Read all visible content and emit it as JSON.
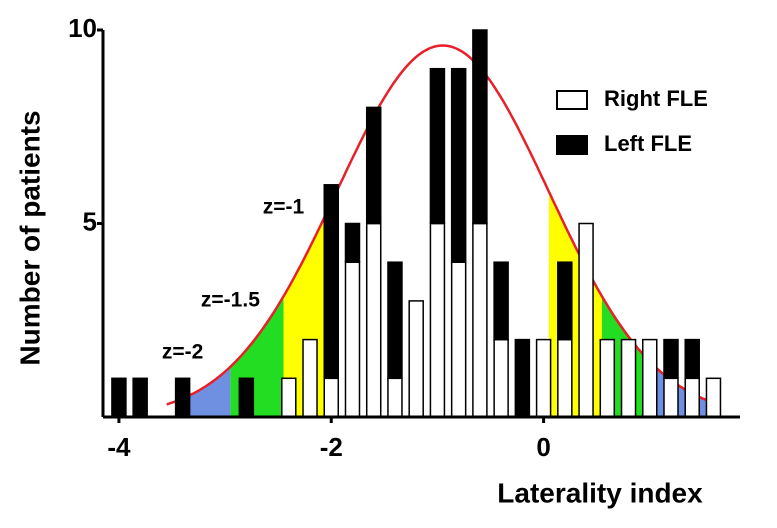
{
  "chart_data": {
    "type": "histogram",
    "x_label": "Laterality index",
    "y_label": "Number of patients",
    "x": [
      -4.0,
      -3.8,
      -3.4,
      -2.8,
      -2.4,
      -2.2,
      -2.0,
      -1.8,
      -1.6,
      -1.4,
      -1.2,
      -1.0,
      -0.8,
      -0.6,
      -0.4,
      -0.2,
      0.0,
      0.2,
      0.4,
      0.6,
      0.8,
      1.0,
      1.2,
      1.4,
      1.6
    ],
    "series": [
      {
        "name": "Right FLE",
        "color": "#ffffff",
        "values": [
          0,
          0,
          0,
          0,
          1,
          2,
          1,
          4,
          5,
          1,
          3,
          5,
          4,
          5,
          2,
          0,
          2,
          2,
          5,
          2,
          2,
          2,
          1,
          1,
          1
        ]
      },
      {
        "name": "Left FLE",
        "color": "#000000",
        "values": [
          1,
          1,
          1,
          1,
          0,
          0,
          5,
          1,
          3,
          3,
          0,
          4,
          5,
          5,
          2,
          2,
          0,
          2,
          0,
          0,
          0,
          0,
          1,
          1,
          0
        ]
      }
    ],
    "stacked": true,
    "curve": {
      "mean": -0.95,
      "sd": 1.0,
      "peak": 9.6,
      "color": "#e8202a"
    },
    "zones": [
      {
        "from": 1.0,
        "to": 1.5,
        "color": "#ffff00"
      },
      {
        "from": 1.5,
        "to": 2.0,
        "color": "#22dd22"
      },
      {
        "from": 2.0,
        "to": 2.5,
        "color": "#6f8fe0"
      }
    ],
    "annotations": [
      {
        "text": "z=-1",
        "x": -2.45,
        "y": 5.4
      },
      {
        "text": "z=-1.5",
        "x": -2.95,
        "y": 3.0
      },
      {
        "text": "z=-2",
        "x": -3.4,
        "y": 1.65
      }
    ],
    "xlim": [
      -4.15,
      1.85
    ],
    "xticks": [
      -4,
      -2,
      0
    ],
    "ylim": [
      0,
      10
    ],
    "yticks": [
      5,
      10
    ],
    "legend": "upper right"
  }
}
